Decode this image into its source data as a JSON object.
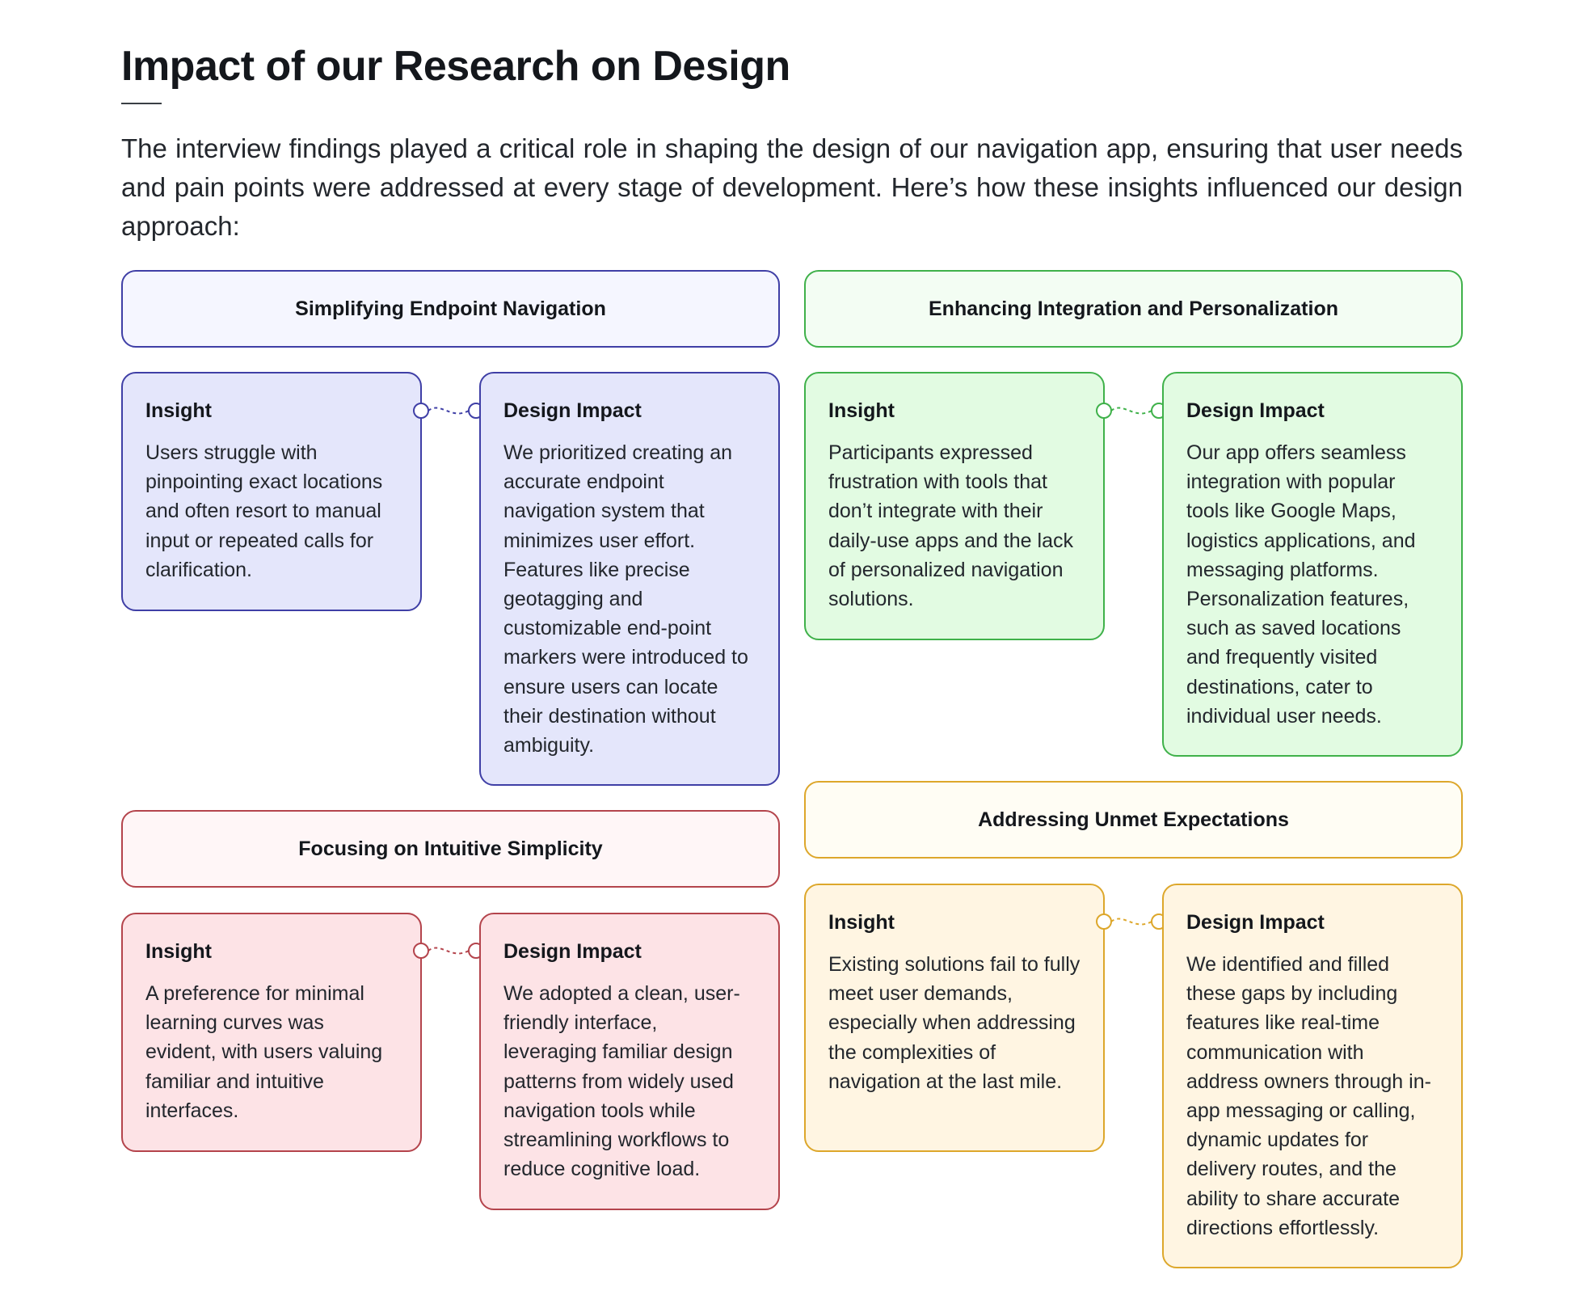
{
  "page": {
    "title": "Impact of our Research on Design",
    "intro": "The interview findings played a critical role in shaping the design of our navigation app, ensuring that user needs and pain points were addressed at every stage of development. Here’s how these insights influenced our design approach:"
  },
  "sections": [
    {
      "heading": "Simplifying Endpoint Navigation",
      "color": "#3f3fa6",
      "insight_label": "Insight",
      "insight": "Users struggle with pinpointing exact locations and often resort to manual input or repeated calls for clarification.",
      "impact_label": "Design Impact",
      "impact": "We prioritized creating an accurate endpoint navigation system that minimizes user effort. Features like precise geotagging and customizable end-point markers were introduced to ensure users can locate their destination without ambiguity."
    },
    {
      "heading": "Enhancing Integration and Personalization",
      "color": "#3fb14a",
      "insight_label": "Insight",
      "insight": "Participants expressed frustration with tools that don’t integrate with their daily-use apps and the lack of personalized navigation solutions.",
      "impact_label": "Design Impact",
      "impact": "Our app offers seamless integration with popular tools like Google Maps, logistics applications, and messaging platforms. Personalization features, such as saved locations and frequently visited destinations, cater to individual user needs."
    },
    {
      "heading": "Focusing on Intuitive Simplicity",
      "color": "#b4444c",
      "insight_label": "Insight",
      "insight": "A preference for minimal learning curves was evident, with users valuing familiar and intuitive interfaces.",
      "impact_label": "Design Impact",
      "impact": "We adopted a clean, user-friendly interface, leveraging familiar design patterns from widely used navigation tools while streamlining workflows to reduce cognitive load."
    },
    {
      "heading": "Addressing Unmet Expectations",
      "color": "#dda72b",
      "insight_label": "Insight",
      "insight": "Existing solutions fail to fully meet user demands, especially when addressing the complexities of navigation at the last mile.",
      "impact_label": "Design Impact",
      "impact": "We identified and filled these gaps by including features like real-time communication with address owners through in-app messaging or calling, dynamic updates for delivery routes, and the ability to share accurate directions effortlessly."
    }
  ]
}
